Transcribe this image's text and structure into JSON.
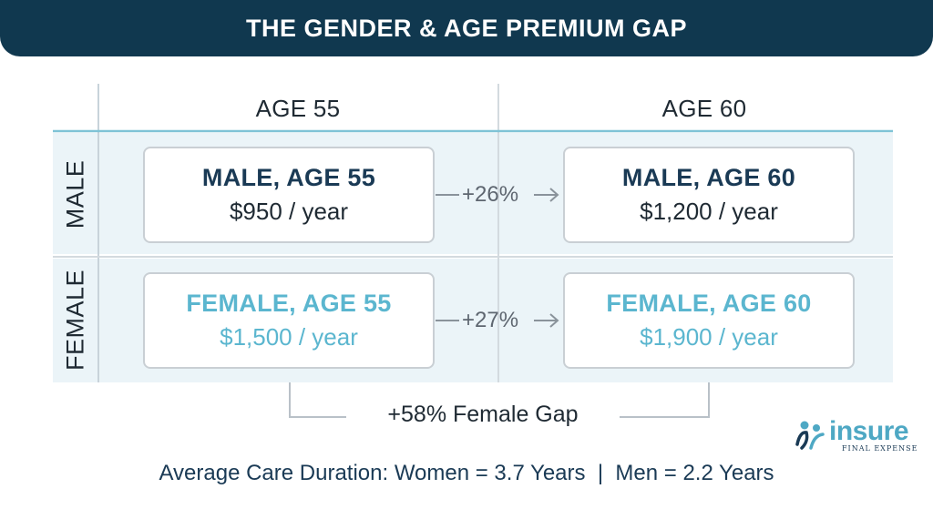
{
  "banner": {
    "title": "THE GENDER & AGE PREMIUM GAP"
  },
  "columns": [
    "AGE 55",
    "AGE 60"
  ],
  "rows": [
    "MALE",
    "FEMALE"
  ],
  "cards": {
    "male_55": {
      "title": "MALE, AGE 55",
      "price": "$950 / year"
    },
    "male_60": {
      "title": "MALE, AGE 60",
      "price": "$1,200 / year"
    },
    "female_55": {
      "title": "FEMALE, AGE 55",
      "price": "$1,500 / year"
    },
    "female_60": {
      "title": "FEMALE, AGE 60",
      "price": "$1,900 / year"
    }
  },
  "increases": {
    "male": "+26%",
    "female": "+27%"
  },
  "gap_label": "+58% Female Gap",
  "footer": "Average Care Duration: Women = 3.7 Years  |  Men = 2.2 Years",
  "logo": {
    "word": "insure",
    "sub": "FINAL EXPENSE",
    "icon": "people-icon"
  },
  "colors": {
    "navy": "#10384f",
    "accent": "#5bb6cf",
    "band": "#ebf4f8"
  }
}
